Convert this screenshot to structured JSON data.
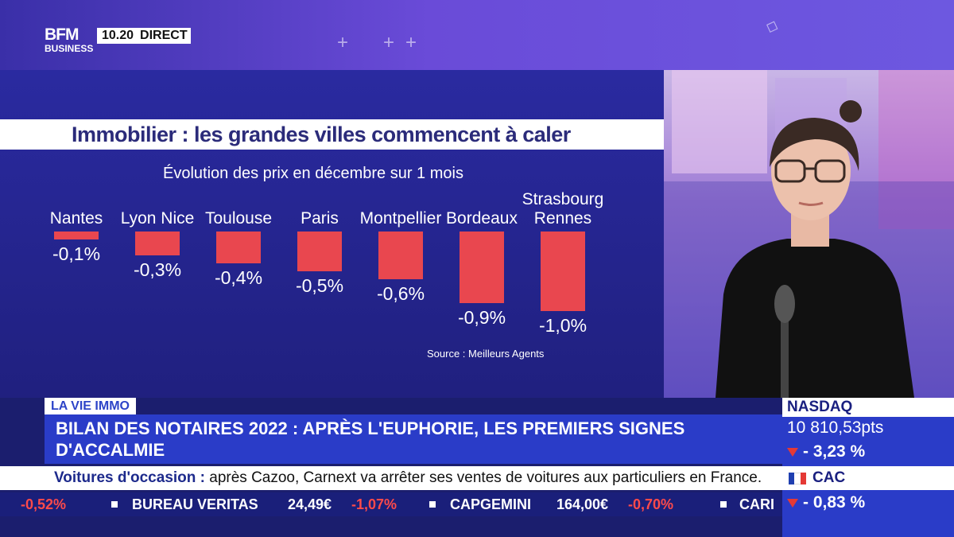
{
  "channel": {
    "logo_line1": "BFM",
    "logo_line2": "BUSINESS",
    "time": "10.20",
    "live_label": "DIRECT"
  },
  "graphic": {
    "title": "Immobilier : les grandes villes commencent à caler",
    "subtitle": "Évolution des prix en décembre sur 1 mois",
    "source": "Source : Meilleurs Agents"
  },
  "chart_data": {
    "type": "bar",
    "categories": [
      "Nantes",
      "Lyon Nice",
      "Toulouse",
      "Paris",
      "Montpellier",
      "Bordeaux",
      "Strasbourg Rennes"
    ],
    "category_lines": [
      [
        "Nantes"
      ],
      [
        "Lyon Nice"
      ],
      [
        "Toulouse"
      ],
      [
        "Paris"
      ],
      [
        "Montpellier"
      ],
      [
        "Bordeaux"
      ],
      [
        "Strasbourg",
        "Rennes"
      ]
    ],
    "values": [
      -0.1,
      -0.3,
      -0.4,
      -0.5,
      -0.6,
      -0.9,
      -1.0
    ],
    "value_labels": [
      "-0,1%",
      "-0,3%",
      "-0,4%",
      "-0,5%",
      "-0,6%",
      "-0,9%",
      "-1,0%"
    ],
    "title": "Immobilier : les grandes villes commencent à caler",
    "subtitle": "Évolution des prix en décembre sur 1 mois",
    "ylim": [
      -1.0,
      0
    ],
    "bar_color": "#e9474f"
  },
  "lower_third": {
    "category": "LA VIE IMMO",
    "headline": "BILAN DES NOTAIRES 2022 : APRÈS L'EUPHORIE, LES PREMIERS SIGNES D'ACCALMIE"
  },
  "news_ticker": {
    "topic": "Voitures d'occasion :",
    "text": "après Cazoo, Carnext va arrêter ses ventes de voitures aux particuliers en France."
  },
  "stock_ticker": [
    {
      "name": "",
      "value": "",
      "change": "-0,52%"
    },
    {
      "name": "BUREAU VERITAS",
      "value": "24,49€",
      "change": "-1,07%"
    },
    {
      "name": "CAPGEMINI",
      "value": "164,00€",
      "change": "-0,70%"
    },
    {
      "name": "CARI",
      "value": "",
      "change": ""
    }
  ],
  "markets": {
    "nasdaq_label": "NASDAQ",
    "nasdaq_value": "10 810,53pts",
    "nasdaq_change": "- 3,23 %",
    "cac_label": "CAC",
    "cac_change": "- 0,83 %",
    "down_color": "#e53935"
  }
}
